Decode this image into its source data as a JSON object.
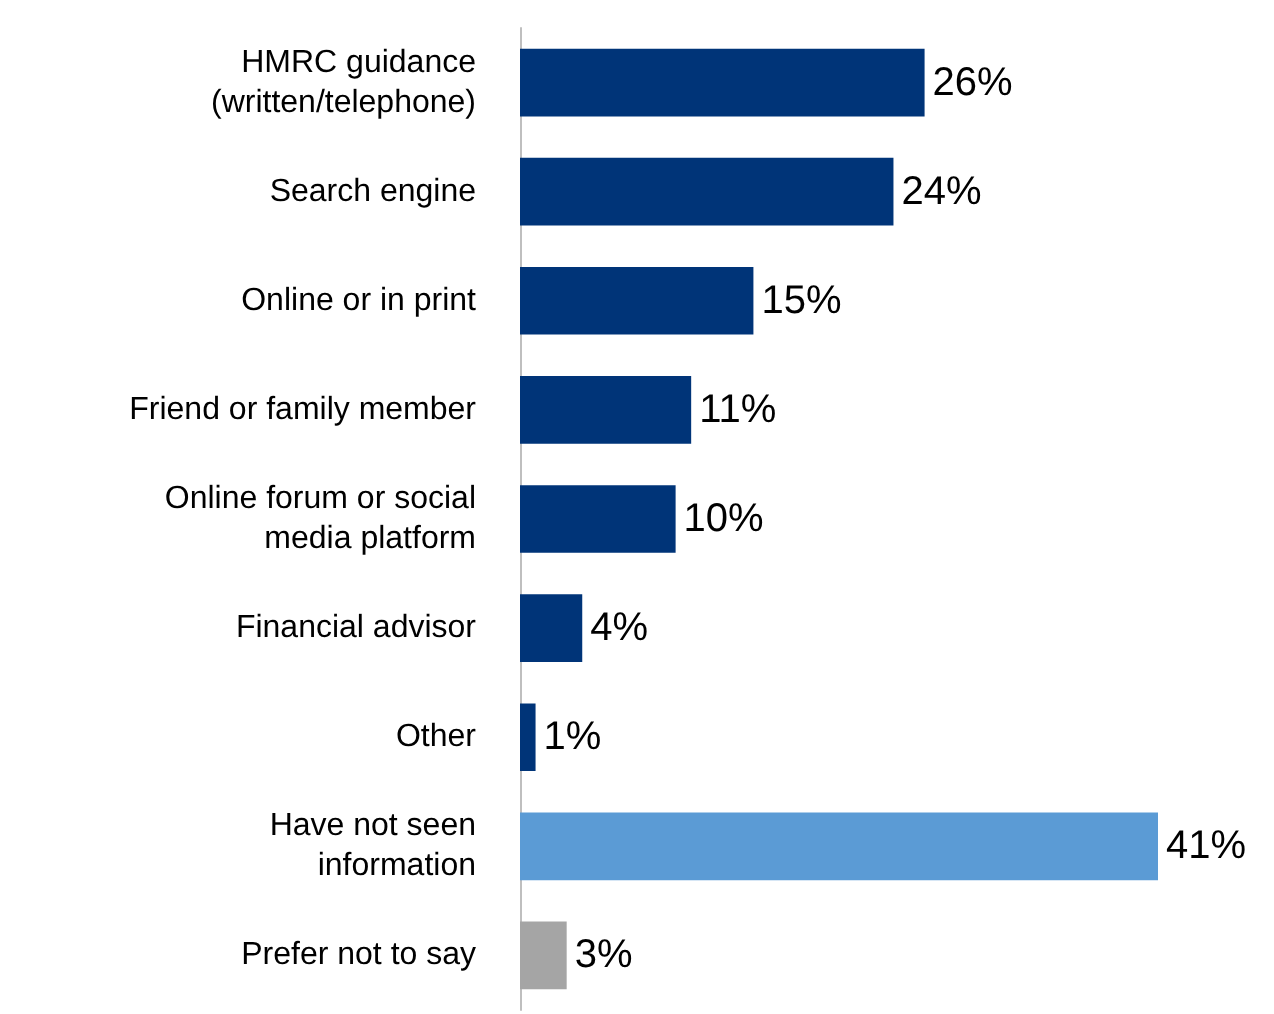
{
  "chart_data": {
    "type": "bar",
    "orientation": "horizontal",
    "tick_labels": "y",
    "grid": false,
    "categories": [
      "HMRC guidance\n(written/telephone)",
      "Search engine",
      "Online or in print",
      "Friend or family member",
      "Online forum or social\nmedia platform",
      "Financial advisor",
      "Other",
      "Have not seen\ninformation",
      "Prefer not to say"
    ],
    "values": [
      26,
      24,
      15,
      11,
      10,
      4,
      1,
      41,
      3
    ],
    "colors": [
      "#003478",
      "#003478",
      "#003478",
      "#003478",
      "#003478",
      "#003478",
      "#003478",
      "#5b9bd5",
      "#a5a5a5"
    ],
    "value_labels": [
      "26%",
      "24%",
      "15%",
      "11%",
      "10%",
      "4%",
      "1%",
      "41%",
      "3%"
    ]
  }
}
